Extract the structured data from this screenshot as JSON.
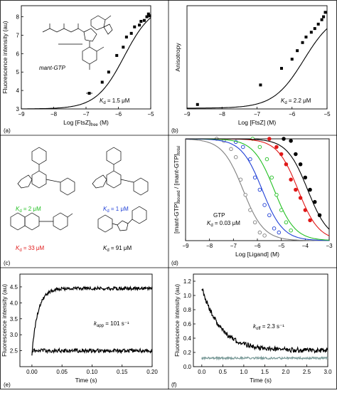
{
  "figure": {
    "panel_labels": [
      "(a)",
      "(b)",
      "(c)",
      "(d)",
      "(e)",
      "(f)"
    ]
  },
  "panel_c": {
    "labels": [
      {
        "prefix": "K",
        "sub": "d",
        "text": " = 2 μM",
        "color": "#22c022"
      },
      {
        "prefix": "K",
        "sub": "d",
        "text": " = 1 μM",
        "color": "#1f3fd6"
      },
      {
        "prefix": "K",
        "sub": "d",
        "text": " = 33 μM",
        "color": "#e01818"
      },
      {
        "prefix": "K",
        "sub": "d",
        "text": " = 91 μM",
        "color": "#000000"
      }
    ]
  },
  "chart_data": [
    {
      "panel": "a",
      "type": "scatter",
      "xlabel": "Log [FtsZ]",
      "xlabel_sub": "free",
      "xlabel_suffix": " (M)",
      "ylabel": "Fluorescence intensity (au)",
      "xlim": [
        -9,
        -5
      ],
      "xticks": [
        -9,
        -8,
        -7,
        -6,
        -5
      ],
      "xtick_labels": [
        "−9",
        "−8",
        "−7",
        "−6",
        "−5"
      ],
      "ylim": [
        3,
        8.6
      ],
      "yticks": [
        3,
        4,
        5,
        6,
        7,
        8
      ],
      "ytick_labels": [
        "3",
        "4",
        "5",
        "6",
        "7",
        "8"
      ],
      "annotation": {
        "prefix": "K",
        "sub": "d",
        "text": " = 1.5 μM"
      },
      "ligand_label": "mant-GTP",
      "fit": {
        "bottom": 3.0,
        "top": 8.7,
        "logKd": -5.82
      },
      "points": [
        {
          "x": -6.9,
          "y": 3.85,
          "xerr": 0.1
        },
        {
          "x": -6.5,
          "y": 4.45
        },
        {
          "x": -6.3,
          "y": 5.0
        },
        {
          "x": -6.05,
          "y": 5.9
        },
        {
          "x": -5.85,
          "y": 6.35
        },
        {
          "x": -5.75,
          "y": 6.9
        },
        {
          "x": -5.6,
          "y": 7.1
        },
        {
          "x": -5.5,
          "y": 7.45
        },
        {
          "x": -5.35,
          "y": 7.55
        },
        {
          "x": -5.3,
          "y": 7.75
        },
        {
          "x": -5.2,
          "y": 7.8
        },
        {
          "x": -5.12,
          "y": 8.0
        },
        {
          "x": -5.07,
          "y": 8.15
        },
        {
          "x": -5.03,
          "y": 8.05
        }
      ]
    },
    {
      "panel": "b",
      "type": "scatter",
      "xlabel": "Log [FtsZ]",
      "xlabel_suffix": " (M)",
      "ylabel": "Anisotropy",
      "xlim": [
        -9,
        -5
      ],
      "xticks": [
        -9,
        -8,
        -7,
        -6,
        -5
      ],
      "xtick_labels": [
        "−9",
        "−8",
        "−7",
        "−6",
        "−5"
      ],
      "ylim": [
        0.02,
        0.3
      ],
      "annotation": {
        "prefix": "K",
        "sub": "d",
        "text": " = 2.2 μM"
      },
      "fit": {
        "bottom": 0.022,
        "top": 0.285,
        "logKd": -5.66
      },
      "points": [
        {
          "x": -8.7,
          "y": 0.032
        },
        {
          "x": -6.9,
          "y": 0.085
        },
        {
          "x": -6.3,
          "y": 0.13
        },
        {
          "x": -6.0,
          "y": 0.155
        },
        {
          "x": -5.85,
          "y": 0.178
        },
        {
          "x": -5.7,
          "y": 0.2
        },
        {
          "x": -5.6,
          "y": 0.215
        },
        {
          "x": -5.45,
          "y": 0.228
        },
        {
          "x": -5.35,
          "y": 0.238
        },
        {
          "x": -5.25,
          "y": 0.25
        },
        {
          "x": -5.15,
          "y": 0.262
        },
        {
          "x": -5.1,
          "y": 0.27
        },
        {
          "x": -5.05,
          "y": 0.282
        }
      ]
    },
    {
      "panel": "d",
      "type": "scatter",
      "xlabel": "Log [Ligand] (M)",
      "ylabel_parts": [
        "[mant-GTP]",
        "bound",
        " / [mant-GTP]",
        "total"
      ],
      "xlim": [
        -9,
        -3
      ],
      "xticks": [
        -9,
        -8,
        -7,
        -6,
        -5,
        -4,
        -3
      ],
      "xtick_labels": [
        "−9",
        "−8",
        "−7",
        "−6",
        "−5",
        "−4",
        "−3"
      ],
      "ylim": [
        0,
        1
      ],
      "annotation_lines": [
        "GTP"
      ],
      "annotation": {
        "prefix": "K",
        "sub": "d",
        "text": " = 0.03 μM"
      },
      "series": [
        {
          "color": "#808080",
          "fill": "#ffffff",
          "logIC50": -6.6,
          "x": [
            -7.7,
            -7.4,
            -7.1,
            -6.9,
            -6.7,
            -6.5,
            -6.3,
            -6.1,
            -5.9,
            -5.7
          ],
          "y": [
            1.0,
            0.98,
            0.9,
            0.82,
            0.6,
            0.45,
            0.3,
            0.18,
            0.08,
            0.05
          ]
        },
        {
          "color": "#1f3fd6",
          "fill": "#ffffff",
          "logIC50": -5.8,
          "x": [
            -6.9,
            -6.6,
            -6.3,
            -6.1,
            -5.9,
            -5.7,
            -5.5,
            -5.3,
            -5.1
          ],
          "y": [
            0.97,
            0.92,
            0.8,
            0.62,
            0.5,
            0.35,
            0.25,
            0.12,
            0.08
          ]
        },
        {
          "color": "#22c022",
          "fill": "#ffffff",
          "logIC50": -5.3,
          "x": [
            -6.2,
            -5.9,
            -5.6,
            -5.4,
            -5.2,
            -5.0,
            -4.8,
            -4.6
          ],
          "y": [
            1.0,
            0.92,
            0.8,
            0.62,
            0.45,
            0.3,
            0.18,
            0.1
          ]
        },
        {
          "color": "#e01818",
          "fill": "#e01818",
          "logIC50": -4.3,
          "x": [
            -5.5,
            -5.2,
            -5.0,
            -4.8,
            -4.6,
            -4.4,
            -4.2,
            -4.0,
            -3.8
          ],
          "y": [
            1.0,
            0.92,
            0.85,
            0.75,
            0.6,
            0.5,
            0.42,
            0.3,
            0.2
          ]
        },
        {
          "color": "#000000",
          "fill": "#000000",
          "logIC50": -3.9,
          "x": [
            -4.9,
            -4.6,
            -4.4,
            -4.2,
            -4.0,
            -3.8,
            -3.6,
            -3.4
          ],
          "y": [
            1.0,
            0.98,
            0.85,
            0.75,
            0.62,
            0.5,
            0.38,
            0.25
          ]
        }
      ]
    },
    {
      "panel": "e",
      "type": "line",
      "xlabel": "Time (s)",
      "ylabel": "Fluorescence intensity (au)",
      "xlim": [
        -0.02,
        0.2
      ],
      "xticks": [
        0,
        0.05,
        0.1,
        0.15,
        0.2
      ],
      "xtick_labels": [
        "0.00",
        "0.05",
        "0.10",
        "0.15",
        "0.20"
      ],
      "ylim": [
        2.0,
        4.9
      ],
      "yticks": [
        2.5,
        3.0,
        3.5,
        4.0,
        4.5
      ],
      "ytick_labels": [
        "2.5",
        "3.0",
        "3.5",
        "4.0",
        "4.5"
      ],
      "annotation": {
        "prefix": "k",
        "sub": "app",
        "text": " = 101 s⁻¹"
      },
      "traces": [
        {
          "kind": "rise",
          "start": 2.4,
          "plateau": 4.45,
          "k": 101,
          "noise": 0.05,
          "color": "#000000"
        },
        {
          "kind": "flat",
          "level": 2.5,
          "noise": 0.06,
          "color": "#000000"
        }
      ]
    },
    {
      "panel": "f",
      "type": "line",
      "xlabel": "Time (s)",
      "ylabel": "Fluorescence intensity (au)",
      "xlim": [
        -0.2,
        3.0
      ],
      "xticks": [
        0,
        0.5,
        1.0,
        1.5,
        2.0,
        2.5,
        3.0
      ],
      "xtick_labels": [
        "0.0",
        "0.5",
        "1.0",
        "1.5",
        "2.0",
        "2.5",
        "3.0"
      ],
      "ylim": [
        0,
        1.3
      ],
      "yticks": [
        0,
        0.2,
        0.4,
        0.6,
        0.8,
        1.0,
        1.2
      ],
      "ytick_labels": [
        "0.0",
        "0.2",
        "0.4",
        "0.6",
        "0.8",
        "1.0",
        "1.2"
      ],
      "annotation": {
        "prefix": "k",
        "sub": "off",
        "text": " = 2.3 s⁻¹"
      },
      "traces": [
        {
          "kind": "decay",
          "start": 1.12,
          "plateau": 0.23,
          "k": 2.3,
          "noise": 0.035,
          "color": "#000000"
        },
        {
          "kind": "flat",
          "level": 0.12,
          "noise": 0.015,
          "color": "#7a9a98"
        }
      ]
    }
  ]
}
